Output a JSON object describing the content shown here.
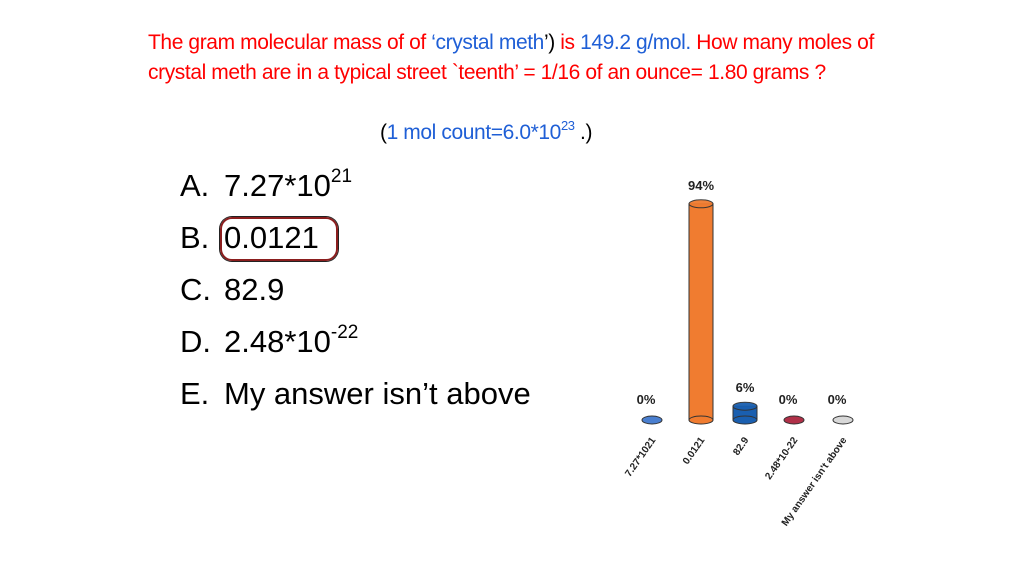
{
  "question": {
    "seg1": "The  gram molecular mass of of ",
    "seg2": "‘crystal meth",
    "seg3": "’)",
    "seg4": " is ",
    "seg5": "149.2 g/mol.",
    "seg6": " How many moles of crystal meth are in a typical street `teenth’ = 1/16 of an ounce= 1.80 grams ?",
    "hint_open": "(",
    "hint_text": "1 mol count=6.0*10",
    "hint_exp": "23",
    "hint_close": " .)"
  },
  "answers": [
    {
      "letter": "A.",
      "value": "7.27*10",
      "sup": "21"
    },
    {
      "letter": "B.",
      "value": "0.0121",
      "sup": ""
    },
    {
      "letter": "C.",
      "value": "82.9",
      "sup": ""
    },
    {
      "letter": "D.",
      "value": "2.48*10",
      "sup": "-22"
    },
    {
      "letter": "E.",
      "value": "My answer isn’t above",
      "sup": ""
    }
  ],
  "chart_data": {
    "type": "bar",
    "categories": [
      "7.27*1021",
      "0.0121",
      "82.9",
      "2.48*10-22",
      "My answer isn't above"
    ],
    "values": [
      0,
      94,
      6,
      0,
      0
    ],
    "value_labels": [
      "0%",
      "94%",
      "6%",
      "0%",
      "0%"
    ],
    "ylim": [
      0,
      100
    ],
    "colors": [
      "#4a7fd0",
      "#f07c30",
      "#1a5fb0",
      "#b03048",
      "#d8d8d8"
    ]
  }
}
